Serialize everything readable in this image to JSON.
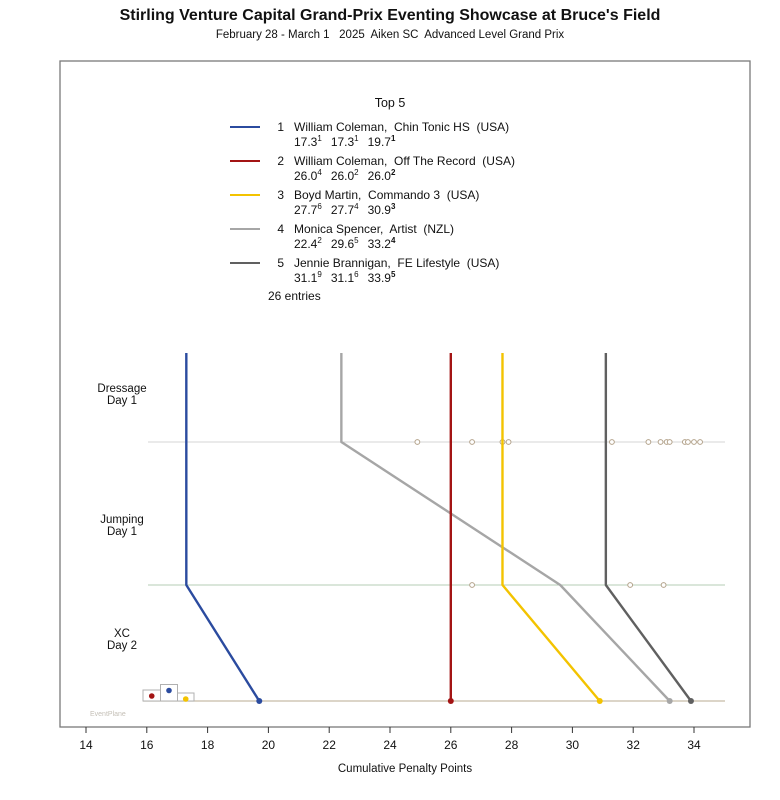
{
  "title": "Stirling Venture Capital Grand-Prix Eventing Showcase at Bruce's Field",
  "subtitle": "February 28 - March 1   2025  Aiken SC  Advanced Level Grand Prix",
  "watermark": "EventPlane",
  "legend": {
    "title": "Top 5",
    "entries_note": "26 entries",
    "riders": [
      {
        "rank": "1",
        "name": "William Coleman,  Chin Tonic HS  (USA)",
        "color": "#2B4B9F",
        "scores": [
          {
            "v": "17.3",
            "sup": "1",
            "bold": false
          },
          {
            "v": "17.3",
            "sup": "1",
            "bold": false
          },
          {
            "v": "19.7",
            "sup": "1",
            "bold": true
          }
        ]
      },
      {
        "rank": "2",
        "name": "William Coleman,  Off The Record  (USA)",
        "color": "#A31414",
        "scores": [
          {
            "v": "26.0",
            "sup": "4",
            "bold": false
          },
          {
            "v": "26.0",
            "sup": "2",
            "bold": false
          },
          {
            "v": "26.0",
            "sup": "2",
            "bold": true
          }
        ]
      },
      {
        "rank": "3",
        "name": "Boyd Martin,  Commando 3  (USA)",
        "color": "#F3C300",
        "scores": [
          {
            "v": "27.7",
            "sup": "6",
            "bold": false
          },
          {
            "v": "27.7",
            "sup": "4",
            "bold": false
          },
          {
            "v": "30.9",
            "sup": "3",
            "bold": true
          }
        ]
      },
      {
        "rank": "4",
        "name": "Monica Spencer,  Artist  (NZL)",
        "color": "#A6A6A6",
        "scores": [
          {
            "v": "22.4",
            "sup": "2",
            "bold": false
          },
          {
            "v": "29.6",
            "sup": "5",
            "bold": false
          },
          {
            "v": "33.2",
            "sup": "4",
            "bold": true
          }
        ]
      },
      {
        "rank": "5",
        "name": "Jennie Brannigan,  FE Lifestyle  (USA)",
        "color": "#606060",
        "scores": [
          {
            "v": "31.1",
            "sup": "9",
            "bold": false
          },
          {
            "v": "31.1",
            "sup": "6",
            "bold": false
          },
          {
            "v": "33.9",
            "sup": "5",
            "bold": true
          }
        ]
      }
    ]
  },
  "chart_data": {
    "type": "line",
    "subtype": "bump-eventing",
    "title": "Top 5",
    "xlabel": "Cumulative Penalty Points",
    "x_axis": {
      "ticks": [
        14,
        16,
        18,
        20,
        22,
        24,
        26,
        28,
        30,
        32,
        34
      ],
      "range": [
        13.1,
        35.8
      ]
    },
    "phases": [
      {
        "lines": [
          "Dressage",
          "Day 1"
        ]
      },
      {
        "lines": [
          "Jumping",
          "Day 1"
        ]
      },
      {
        "lines": [
          "XC",
          "Day 2"
        ]
      }
    ],
    "series": [
      {
        "name": "William Coleman, Chin Tonic HS (USA)",
        "color": "#2B4B9F",
        "values": [
          17.3,
          17.3,
          19.7
        ],
        "placings": [
          1,
          1,
          1
        ]
      },
      {
        "name": "William Coleman, Off The Record (USA)",
        "color": "#A31414",
        "values": [
          26.0,
          26.0,
          26.0
        ],
        "placings": [
          4,
          2,
          2
        ]
      },
      {
        "name": "Boyd Martin, Commando 3 (USA)",
        "color": "#F3C300",
        "values": [
          27.7,
          27.7,
          30.9
        ],
        "placings": [
          6,
          4,
          3
        ]
      },
      {
        "name": "Monica Spencer, Artist (NZL)",
        "color": "#A6A6A6",
        "values": [
          22.4,
          29.6,
          33.2
        ],
        "placings": [
          2,
          5,
          4
        ]
      },
      {
        "name": "Jennie Brannigan, FE Lifestyle (USA)",
        "color": "#606060",
        "values": [
          31.1,
          31.1,
          33.9
        ],
        "placings": [
          9,
          6,
          5
        ]
      }
    ],
    "other_entries": {
      "dressage": [
        24.9,
        26.7,
        27.7,
        27.9,
        31.3,
        32.5,
        32.9,
        33.1,
        33.2,
        33.7,
        33.8,
        34.0,
        34.2
      ],
      "jumping": [
        26.7,
        31.9,
        33.0
      ]
    },
    "grid": true,
    "legend_position": "top-center"
  },
  "podium": {
    "dot_colors": [
      "#A31414",
      "#2B4B9F",
      "#F3C300"
    ]
  },
  "colors": {
    "grid_dressage": "#D4D4D4",
    "grid_jumping": "#B5CDB5",
    "baseline": "#C8BCA8",
    "entry_dot_stroke": "#B3A28A",
    "plot_border": "#7A7A7A",
    "watermark": "#C4BFB6"
  }
}
